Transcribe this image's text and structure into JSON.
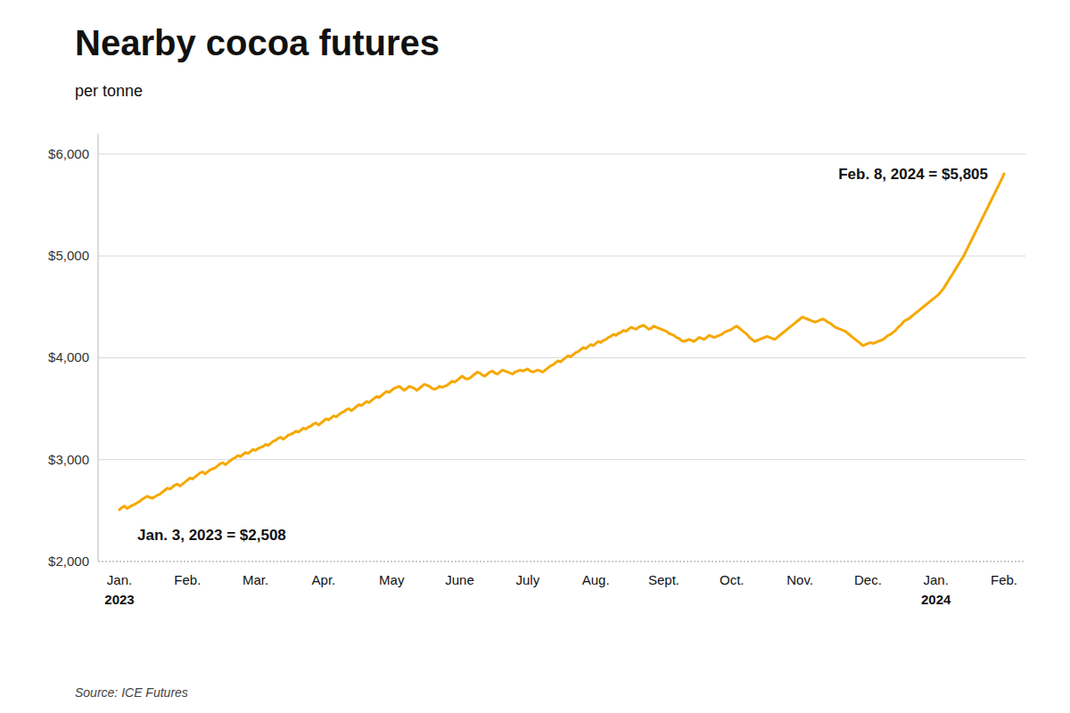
{
  "chart_data": {
    "type": "line",
    "title": "Nearby cocoa futures",
    "subtitle": "per tonne",
    "source": "Source: ICE Futures",
    "annotations": [
      "Jan. 3, 2023 = $2,508",
      "Feb. 8, 2024 = $5,805"
    ],
    "color": "#F5A800",
    "grid": true,
    "ylim": [
      2000,
      6200
    ],
    "yticks": [
      {
        "value": 2000,
        "label": "$2,000"
      },
      {
        "value": 3000,
        "label": "$3,000"
      },
      {
        "value": 4000,
        "label": "$4,000"
      },
      {
        "value": 5000,
        "label": "$5,000"
      },
      {
        "value": 6000,
        "label": "$6,000"
      }
    ],
    "categories": [
      "Jan.",
      null,
      null,
      null,
      null,
      null,
      null,
      null,
      null,
      null,
      null,
      null,
      null,
      null,
      null,
      null,
      null,
      null,
      null,
      null,
      null,
      null,
      null,
      null,
      null,
      null,
      null,
      "Feb.",
      null,
      null,
      null,
      null,
      null,
      null,
      null,
      null,
      null,
      null,
      null,
      null,
      null,
      null,
      null,
      null,
      null,
      null,
      null,
      null,
      null,
      null,
      null,
      null,
      null,
      null,
      "Mar.",
      null,
      null,
      null,
      null,
      null,
      null,
      null,
      null,
      null,
      null,
      null,
      null,
      null,
      null,
      null,
      null,
      null,
      null,
      null,
      null,
      null,
      null,
      null,
      null,
      null,
      null,
      "Apr.",
      null,
      null,
      null,
      null,
      null,
      null,
      null,
      null,
      null,
      null,
      null,
      null,
      null,
      null,
      null,
      null,
      null,
      null,
      null,
      null,
      null,
      null,
      null,
      null,
      null,
      null,
      "May",
      null,
      null,
      null,
      null,
      null,
      null,
      null,
      null,
      null,
      null,
      null,
      null,
      null,
      null,
      null,
      null,
      null,
      null,
      null,
      null,
      null,
      null,
      null,
      null,
      null,
      null,
      "June",
      null,
      null,
      null,
      null,
      null,
      null,
      null,
      null,
      null,
      null,
      null,
      null,
      null,
      null,
      null,
      null,
      null,
      null,
      null,
      null,
      null,
      null,
      null,
      null,
      null,
      null,
      "July",
      null,
      null,
      null,
      null,
      null,
      null,
      null,
      null,
      null,
      null,
      null,
      null,
      null,
      null,
      null,
      null,
      null,
      null,
      null,
      null,
      null,
      null,
      null,
      null,
      null,
      null,
      "Aug.",
      null,
      null,
      null,
      null,
      null,
      null,
      null,
      null,
      null,
      null,
      null,
      null,
      null,
      null,
      null,
      null,
      null,
      null,
      null,
      null,
      null,
      null,
      null,
      null,
      null,
      null,
      "Sept.",
      null,
      null,
      null,
      null,
      null,
      null,
      null,
      null,
      null,
      null,
      null,
      null,
      null,
      null,
      null,
      null,
      null,
      null,
      null,
      null,
      null,
      null,
      null,
      null,
      null,
      null,
      "Oct.",
      null,
      null,
      null,
      null,
      null,
      null,
      null,
      null,
      null,
      null,
      null,
      null,
      null,
      null,
      null,
      null,
      null,
      null,
      null,
      null,
      null,
      null,
      null,
      null,
      null,
      null,
      "Nov.",
      null,
      null,
      null,
      null,
      null,
      null,
      null,
      null,
      null,
      null,
      null,
      null,
      null,
      null,
      null,
      null,
      null,
      null,
      null,
      null,
      null,
      null,
      null,
      null,
      null,
      null,
      "Dec.",
      null,
      null,
      null,
      null,
      null,
      null,
      null,
      null,
      null,
      null,
      null,
      null,
      null,
      null,
      null,
      null,
      null,
      null,
      null,
      null,
      null,
      null,
      null,
      null,
      null,
      null,
      "Jan.",
      null,
      null,
      null,
      null,
      null,
      null,
      null,
      null,
      null,
      null,
      null,
      null,
      null,
      null,
      null,
      null,
      null,
      null,
      null,
      null,
      null,
      null,
      null,
      null,
      null,
      null,
      "Feb."
    ],
    "year_labels": [
      "2023",
      null,
      null,
      null,
      null,
      null,
      null,
      null,
      null,
      null,
      null,
      null,
      null,
      null,
      null,
      null,
      null,
      null,
      null,
      null,
      null,
      null,
      null,
      null,
      null,
      null,
      null,
      null,
      null,
      null,
      null,
      null,
      null,
      null,
      null,
      null,
      null,
      null,
      null,
      null,
      null,
      null,
      null,
      null,
      null,
      null,
      null,
      null,
      null,
      null,
      null,
      null,
      null,
      null,
      null,
      null,
      null,
      null,
      null,
      null,
      null,
      null,
      null,
      null,
      null,
      null,
      null,
      null,
      null,
      null,
      null,
      null,
      null,
      null,
      null,
      null,
      null,
      null,
      null,
      null,
      null,
      null,
      null,
      null,
      null,
      null,
      null,
      null,
      null,
      null,
      null,
      null,
      null,
      null,
      null,
      null,
      null,
      null,
      null,
      null,
      null,
      null,
      null,
      null,
      null,
      null,
      null,
      null,
      null,
      null,
      null,
      null,
      null,
      null,
      null,
      null,
      null,
      null,
      null,
      null,
      null,
      null,
      null,
      null,
      null,
      null,
      null,
      null,
      null,
      null,
      null,
      null,
      null,
      null,
      null,
      null,
      null,
      null,
      null,
      null,
      null,
      null,
      null,
      null,
      null,
      null,
      null,
      null,
      null,
      null,
      null,
      null,
      null,
      null,
      null,
      null,
      null,
      null,
      null,
      null,
      null,
      null,
      null,
      null,
      null,
      null,
      null,
      null,
      null,
      null,
      null,
      null,
      null,
      null,
      null,
      null,
      null,
      null,
      null,
      null,
      null,
      null,
      null,
      null,
      null,
      null,
      null,
      null,
      null,
      null,
      null,
      null,
      null,
      null,
      null,
      null,
      null,
      null,
      null,
      null,
      null,
      null,
      null,
      null,
      null,
      null,
      null,
      null,
      null,
      null,
      null,
      null,
      null,
      null,
      null,
      null,
      null,
      null,
      null,
      null,
      null,
      null,
      null,
      null,
      null,
      null,
      null,
      null,
      null,
      null,
      null,
      null,
      null,
      null,
      null,
      null,
      null,
      null,
      null,
      null,
      null,
      null,
      null,
      null,
      null,
      null,
      null,
      null,
      null,
      null,
      null,
      null,
      null,
      null,
      null,
      null,
      null,
      null,
      null,
      null,
      null,
      null,
      null,
      null,
      null,
      null,
      null,
      null,
      null,
      null,
      null,
      null,
      null,
      null,
      null,
      null,
      null,
      null,
      null,
      null,
      null,
      null,
      null,
      null,
      null,
      null,
      null,
      null,
      null,
      null,
      null,
      null,
      null,
      null,
      null,
      null,
      null,
      null,
      null,
      null,
      null,
      null,
      null,
      null,
      null,
      null,
      null,
      null,
      null,
      null,
      null,
      null,
      null,
      null,
      null,
      null,
      null,
      null,
      null,
      null,
      null,
      null,
      null,
      null,
      "2024",
      null,
      null,
      null,
      null,
      null,
      null,
      null,
      null,
      null,
      null,
      null,
      null,
      null,
      null,
      null,
      null,
      null,
      null,
      null,
      null,
      null,
      null,
      null,
      null,
      null,
      null,
      null
    ],
    "values": [
      2508,
      2530,
      2545,
      2520,
      2535,
      2550,
      2560,
      2575,
      2590,
      2610,
      2625,
      2640,
      2630,
      2620,
      2635,
      2650,
      2660,
      2680,
      2700,
      2720,
      2710,
      2730,
      2750,
      2760,
      2740,
      2760,
      2780,
      2800,
      2820,
      2810,
      2830,
      2850,
      2870,
      2880,
      2860,
      2880,
      2900,
      2910,
      2920,
      2940,
      2960,
      2970,
      2950,
      2970,
      2990,
      3010,
      3020,
      3040,
      3030,
      3050,
      3070,
      3060,
      3080,
      3100,
      3090,
      3110,
      3120,
      3130,
      3150,
      3140,
      3160,
      3180,
      3190,
      3210,
      3220,
      3200,
      3220,
      3240,
      3250,
      3260,
      3280,
      3270,
      3290,
      3310,
      3300,
      3320,
      3330,
      3350,
      3360,
      3340,
      3360,
      3380,
      3400,
      3390,
      3410,
      3430,
      3420,
      3440,
      3460,
      3470,
      3490,
      3500,
      3480,
      3500,
      3520,
      3540,
      3530,
      3550,
      3570,
      3560,
      3580,
      3600,
      3620,
      3610,
      3630,
      3650,
      3670,
      3660,
      3680,
      3700,
      3710,
      3720,
      3700,
      3680,
      3700,
      3720,
      3710,
      3700,
      3680,
      3700,
      3720,
      3740,
      3730,
      3720,
      3700,
      3690,
      3700,
      3720,
      3710,
      3720,
      3730,
      3750,
      3770,
      3760,
      3780,
      3800,
      3820,
      3800,
      3790,
      3800,
      3820,
      3840,
      3860,
      3850,
      3830,
      3820,
      3840,
      3860,
      3870,
      3850,
      3840,
      3860,
      3880,
      3870,
      3860,
      3850,
      3840,
      3860,
      3870,
      3880,
      3870,
      3880,
      3890,
      3870,
      3860,
      3870,
      3880,
      3870,
      3860,
      3880,
      3900,
      3920,
      3930,
      3950,
      3970,
      3960,
      3980,
      4000,
      4020,
      4010,
      4030,
      4050,
      4060,
      4080,
      4100,
      4090,
      4110,
      4130,
      4120,
      4140,
      4160,
      4150,
      4170,
      4180,
      4200,
      4210,
      4230,
      4220,
      4240,
      4250,
      4270,
      4260,
      4280,
      4300,
      4290,
      4280,
      4300,
      4310,
      4320,
      4300,
      4280,
      4290,
      4310,
      4300,
      4290,
      4280,
      4270,
      4260,
      4240,
      4230,
      4220,
      4200,
      4190,
      4170,
      4160,
      4170,
      4180,
      4170,
      4160,
      4180,
      4200,
      4190,
      4180,
      4200,
      4220,
      4210,
      4200,
      4210,
      4220,
      4230,
      4250,
      4260,
      4270,
      4280,
      4300,
      4310,
      4290,
      4270,
      4250,
      4230,
      4200,
      4180,
      4160,
      4170,
      4180,
      4190,
      4200,
      4210,
      4200,
      4190,
      4180,
      4200,
      4220,
      4240,
      4260,
      4280,
      4300,
      4320,
      4340,
      4360,
      4380,
      4400,
      4390,
      4380,
      4370,
      4360,
      4350,
      4360,
      4370,
      4380,
      4370,
      4350,
      4340,
      4320,
      4300,
      4290,
      4280,
      4270,
      4260,
      4240,
      4220,
      4200,
      4180,
      4160,
      4140,
      4120,
      4130,
      4140,
      4150,
      4140,
      4150,
      4160,
      4170,
      4180,
      4200,
      4220,
      4230,
      4250,
      4270,
      4300,
      4320,
      4350,
      4370,
      4380,
      4400,
      4420,
      4440,
      4460,
      4480,
      4500,
      4520,
      4540,
      4560,
      4580,
      4600,
      4620,
      4650,
      4680,
      4720,
      4760,
      4800,
      4840,
      4880,
      4920,
      4960,
      5000,
      5050,
      5100,
      5150,
      5200,
      5250,
      5300,
      5350,
      5400,
      5450,
      5500,
      5550,
      5600,
      5650,
      5700,
      5750,
      5805
    ]
  }
}
